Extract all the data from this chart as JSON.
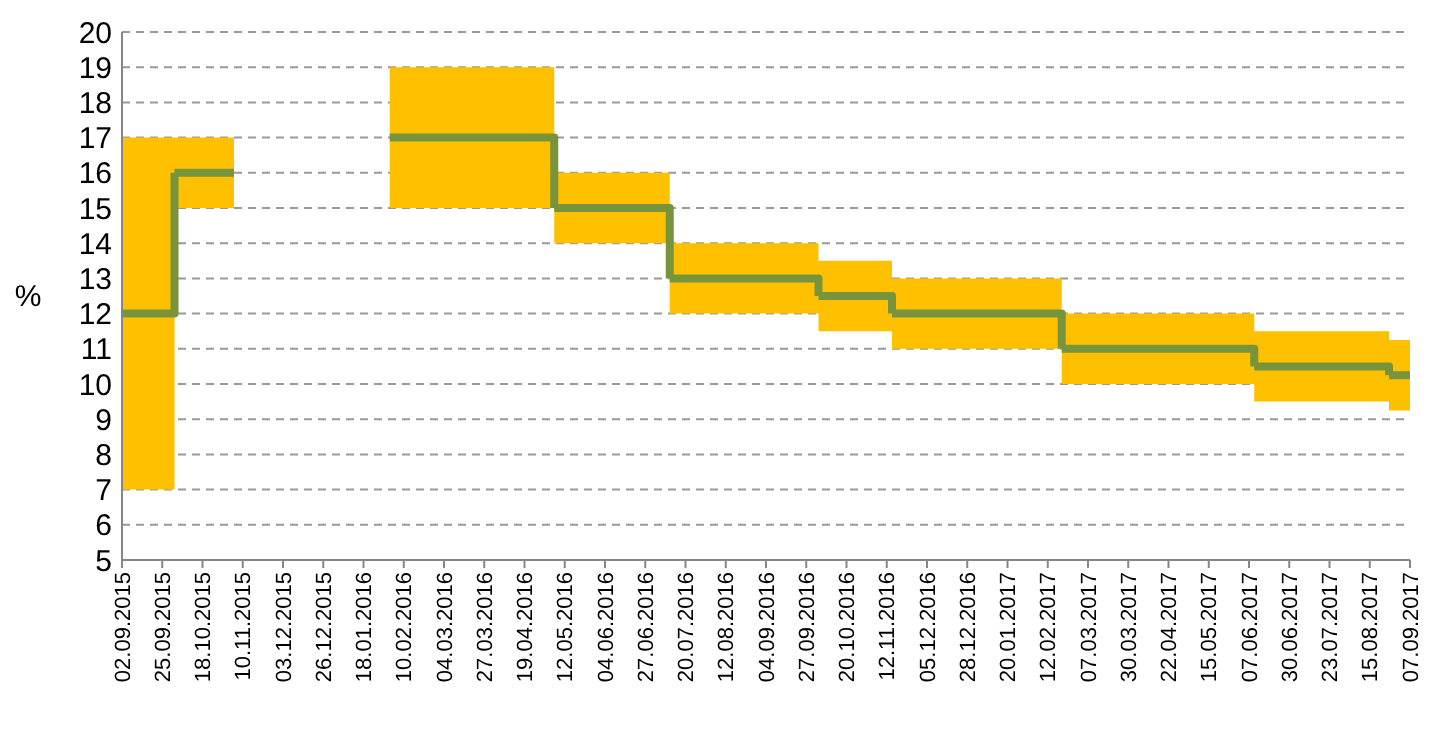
{
  "chart_data": {
    "type": "step",
    "ylabel": "%",
    "x": [
      "2015-09-02",
      "2015-10-02",
      "2015-11-05",
      "2016-02-02",
      "2016-05-06",
      "2016-07-11",
      "2016-10-04",
      "2016-11-15",
      "2017-02-20",
      "2017-06-10",
      "2017-08-26",
      "2017-09-07"
    ],
    "series": [
      {
        "color": "#77933c",
        "values": [
          12,
          16,
          null,
          17,
          15,
          13,
          12.5,
          12,
          11,
          10.5,
          10.25,
          10.25
        ],
        "lower": [
          7,
          15,
          null,
          15,
          14,
          12,
          11.5,
          11,
          10,
          9.5,
          9.25,
          9.25
        ],
        "upper": [
          17,
          17,
          null,
          19,
          16,
          14,
          13.5,
          13,
          12,
          11.5,
          11.25,
          11.25
        ]
      }
    ],
    "xlim": [
      "2015-09-02",
      "2017-09-07"
    ],
    "xticks": [
      {
        "value": "2015-09-02",
        "label": "02.09.2015"
      },
      {
        "value": "2015-09-25",
        "label": "25.09.2015"
      },
      {
        "value": "2015-10-18",
        "label": "18.10.2015"
      },
      {
        "value": "2015-11-10",
        "label": "10.11.2015"
      },
      {
        "value": "2015-12-03",
        "label": "03.12.2015"
      },
      {
        "value": "2015-12-26",
        "label": "26.12.2015"
      },
      {
        "value": "2016-01-18",
        "label": "18.01.2016"
      },
      {
        "value": "2016-02-10",
        "label": "10.02.2016"
      },
      {
        "value": "2016-03-04",
        "label": "04.03.2016"
      },
      {
        "value": "2016-03-27",
        "label": "27.03.2016"
      },
      {
        "value": "2016-04-19",
        "label": "19.04.2016"
      },
      {
        "value": "2016-05-12",
        "label": "12.05.2016"
      },
      {
        "value": "2016-06-04",
        "label": "04.06.2016"
      },
      {
        "value": "2016-06-27",
        "label": "27.06.2016"
      },
      {
        "value": "2016-07-20",
        "label": "20.07.2016"
      },
      {
        "value": "2016-08-12",
        "label": "12.08.2016"
      },
      {
        "value": "2016-09-04",
        "label": "04.09.2016"
      },
      {
        "value": "2016-09-27",
        "label": "27.09.2016"
      },
      {
        "value": "2016-10-20",
        "label": "20.10.2016"
      },
      {
        "value": "2016-11-12",
        "label": "12.11.2016"
      },
      {
        "value": "2016-12-05",
        "label": "05.12.2016"
      },
      {
        "value": "2016-12-28",
        "label": "28.12.2016"
      },
      {
        "value": "2017-01-20",
        "label": "20.01.2017"
      },
      {
        "value": "2017-02-12",
        "label": "12.02.2017"
      },
      {
        "value": "2017-03-07",
        "label": "07.03.2017"
      },
      {
        "value": "2017-03-30",
        "label": "30.03.2017"
      },
      {
        "value": "2017-04-22",
        "label": "22.04.2017"
      },
      {
        "value": "2017-05-15",
        "label": "15.05.2017"
      },
      {
        "value": "2017-06-07",
        "label": "07.06.2017"
      },
      {
        "value": "2017-06-30",
        "label": "30.06.2017"
      },
      {
        "value": "2017-07-23",
        "label": "23.07.2017"
      },
      {
        "value": "2017-08-15",
        "label": "15.08.2017"
      },
      {
        "value": "2017-09-07",
        "label": "07.09.2017"
      }
    ],
    "ylim": [
      5,
      20
    ],
    "yticks": [
      5,
      6,
      7,
      8,
      9,
      10,
      11,
      12,
      13,
      14,
      15,
      16,
      17,
      18,
      19,
      20
    ],
    "grid": "y",
    "line_style": "solid",
    "marker": "none"
  }
}
